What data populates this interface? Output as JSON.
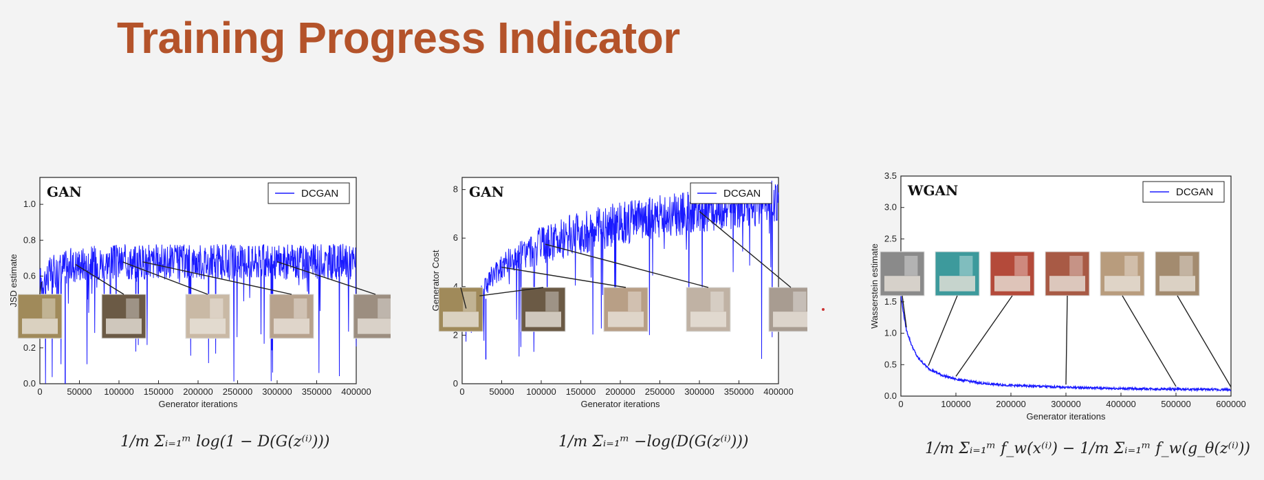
{
  "slide": {
    "title": "Training Progress Indicator"
  },
  "colors": {
    "title": "#b4532a",
    "series": "#1a1aff",
    "axis": "#222222"
  },
  "formulas": [
    "1/m Σᵢ₌₁ᵐ log(1 − D(G(z⁽ⁱ⁾)))",
    "1/m Σᵢ₌₁ᵐ −log(D(G(z⁽ⁱ⁾)))",
    "1/m Σᵢ₌₁ᵐ f_w(x⁽ⁱ⁾) − 1/m Σᵢ₌₁ᵐ f_w(g_θ(z⁽ⁱ⁾))"
  ],
  "chart_data": [
    {
      "type": "line",
      "title": "GAN",
      "xlabel": "Generator iterations",
      "ylabel": "JSD estimate",
      "xlim": [
        0,
        400000
      ],
      "ylim": [
        0,
        1.15
      ],
      "xticks": [
        0,
        50000,
        100000,
        150000,
        200000,
        250000,
        300000,
        350000,
        400000
      ],
      "yticks": [
        0.0,
        0.2,
        0.4,
        0.6,
        0.8,
        1.0
      ],
      "ytick_labels": [
        "0.0",
        "0.2",
        "0.4",
        "0.6",
        "0.8",
        "1.0"
      ],
      "grid": false,
      "legend_position": "top-right",
      "series": [
        {
          "name": "DCGAN",
          "x": [
            0,
            5000,
            10000,
            20000,
            30000,
            40000,
            50000,
            70000,
            100000,
            150000,
            200000,
            250000,
            300000,
            350000,
            400000
          ],
          "y": [
            0.56,
            0.58,
            0.6,
            0.63,
            0.65,
            0.66,
            0.67,
            0.675,
            0.678,
            0.68,
            0.68,
            0.68,
            0.68,
            0.68,
            0.68
          ],
          "noise": 0.1,
          "spikes_to": 0.0
        }
      ],
      "sample_iterations": [
        2000,
        45000,
        105000,
        130000,
        300000
      ]
    },
    {
      "type": "line",
      "title": "GAN",
      "xlabel": "Generator iterations",
      "ylabel": "Generator Cost",
      "xlim": [
        0,
        400000
      ],
      "ylim": [
        0,
        8.5
      ],
      "xticks": [
        0,
        50000,
        100000,
        150000,
        200000,
        250000,
        300000,
        350000,
        400000
      ],
      "yticks": [
        0,
        2,
        4,
        6,
        8
      ],
      "ytick_labels": [
        "0",
        "2",
        "4",
        "6",
        "8"
      ],
      "grid": false,
      "legend_position": "top-right",
      "series": [
        {
          "name": "DCGAN",
          "x": [
            0,
            10000,
            20000,
            30000,
            50000,
            75000,
            100000,
            150000,
            200000,
            250000,
            300000,
            350000,
            400000
          ],
          "y": [
            3.0,
            3.2,
            3.5,
            4.1,
            4.8,
            5.3,
            5.7,
            6.2,
            6.6,
            6.9,
            7.1,
            7.3,
            7.5
          ],
          "noise": 0.9,
          "spikes_to": 1.0
        }
      ],
      "sample_iterations": [
        5000,
        22000,
        50000,
        105000,
        300000
      ]
    },
    {
      "type": "line",
      "title": "WGAN",
      "xlabel": "Generator iterations",
      "ylabel": "Wasserstein estimate",
      "xlim": [
        0,
        600000
      ],
      "ylim": [
        0,
        3.5
      ],
      "xticks": [
        0,
        100000,
        200000,
        300000,
        400000,
        500000,
        600000
      ],
      "yticks": [
        0.0,
        0.5,
        1.0,
        1.5,
        2.0,
        2.5,
        3.0,
        3.5
      ],
      "ytick_labels": [
        "0.0",
        "0.5",
        "1.0",
        "1.5",
        "2.0",
        "2.5",
        "3.0",
        "3.5"
      ],
      "grid": false,
      "legend_position": "top-right",
      "series": [
        {
          "name": "DCGAN",
          "x": [
            0,
            5000,
            10000,
            20000,
            30000,
            50000,
            75000,
            100000,
            150000,
            200000,
            300000,
            400000,
            500000,
            600000
          ],
          "y": [
            1.6,
            1.3,
            1.05,
            0.8,
            0.62,
            0.44,
            0.33,
            0.27,
            0.2,
            0.17,
            0.14,
            0.12,
            0.11,
            0.1
          ],
          "noise": 0.02,
          "spikes_to": null
        }
      ],
      "sample_iterations": [
        10000,
        50000,
        100000,
        300000,
        500000,
        600000
      ]
    }
  ]
}
